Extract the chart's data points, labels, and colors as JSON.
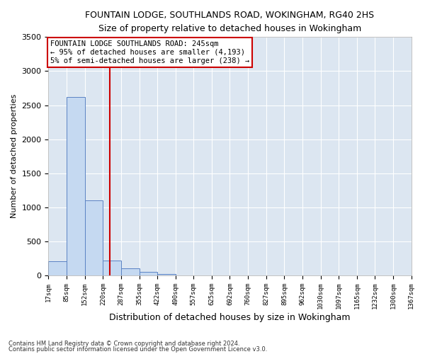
{
  "title": "FOUNTAIN LODGE, SOUTHLANDS ROAD, WOKINGHAM, RG40 2HS",
  "subtitle": "Size of property relative to detached houses in Wokingham",
  "xlabel": "Distribution of detached houses by size in Wokingham",
  "ylabel": "Number of detached properties",
  "footnote1": "Contains HM Land Registry data © Crown copyright and database right 2024.",
  "footnote2": "Contains public sector information licensed under the Open Government Licence v3.0.",
  "property_size": 245,
  "property_line_color": "#cc0000",
  "bar_color": "#c5d9f1",
  "bar_edge_color": "#5b83c4",
  "background_color": "#dce6f1",
  "annotation_line1": "FOUNTAIN LODGE SOUTHLANDS ROAD: 245sqm",
  "annotation_line2": "← 95% of detached houses are smaller (4,193)",
  "annotation_line3": "5% of semi-detached houses are larger (238) →",
  "bin_edges": [
    17,
    85,
    152,
    220,
    287,
    355,
    422,
    490,
    557,
    625,
    692,
    760,
    827,
    895,
    962,
    1030,
    1097,
    1165,
    1232,
    1300,
    1367
  ],
  "bin_counts": [
    210,
    2620,
    1100,
    220,
    100,
    50,
    20,
    0,
    0,
    0,
    0,
    0,
    0,
    0,
    0,
    0,
    0,
    0,
    0,
    0
  ],
  "ylim": [
    0,
    3500
  ],
  "yticks": [
    0,
    500,
    1000,
    1500,
    2000,
    2500,
    3000,
    3500
  ]
}
